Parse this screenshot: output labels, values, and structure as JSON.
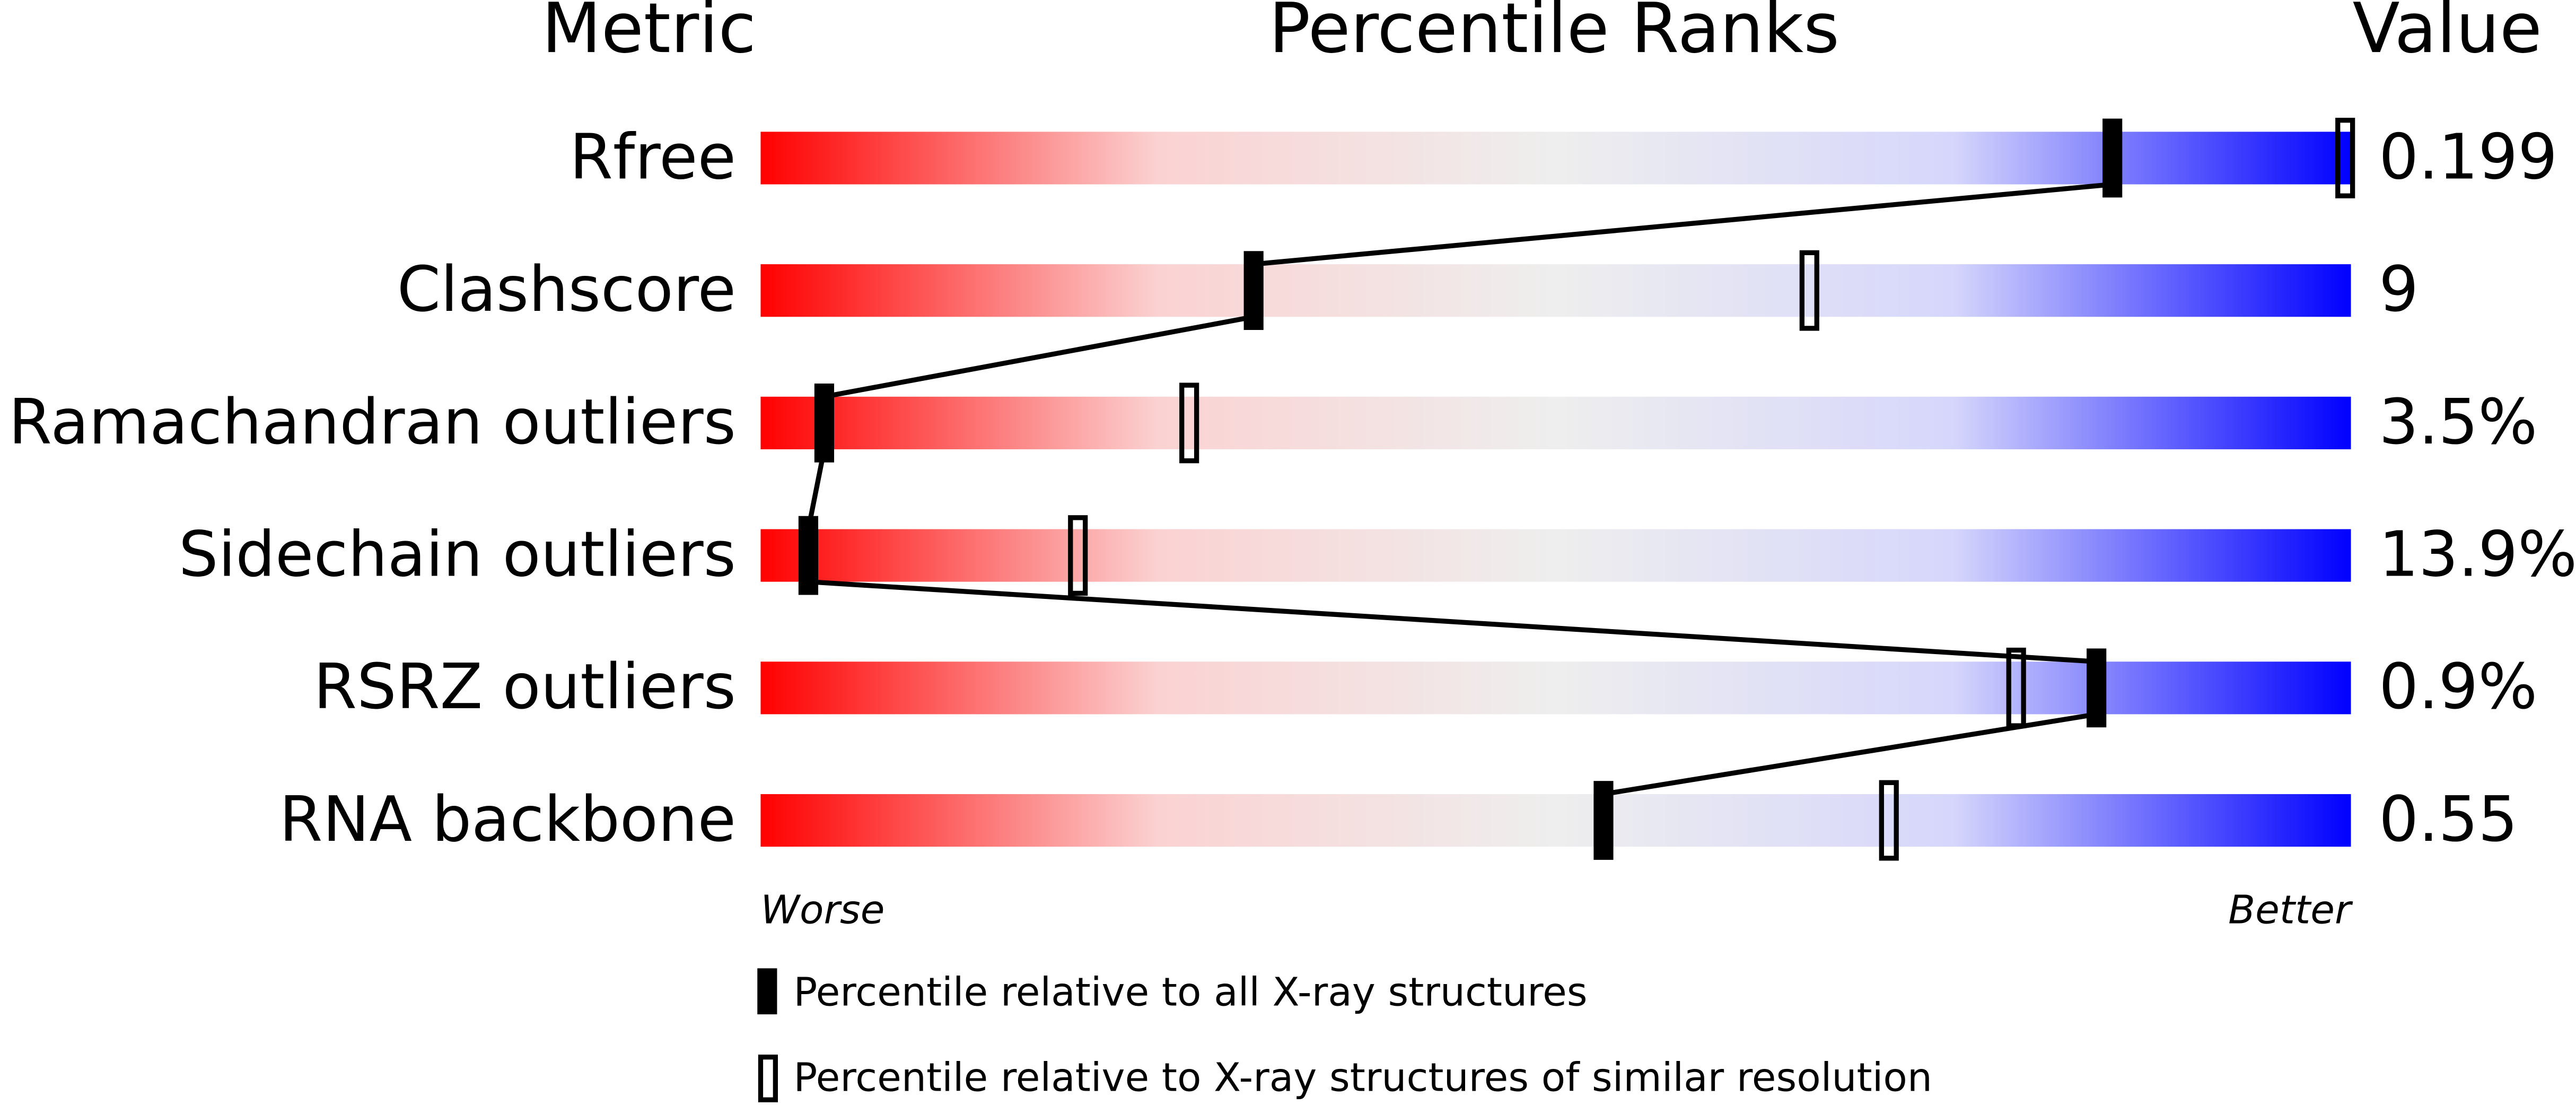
{
  "chart_data": {
    "type": "percentile-slider",
    "headers": {
      "metric": "Metric",
      "ranks": "Percentile Ranks",
      "value": "Value"
    },
    "categories": [
      "Rfree",
      "Clashscore",
      "Ramachandran outliers",
      "Sidechain outliers",
      "RSRZ outliers",
      "RNA backbone"
    ],
    "metric_values": [
      "0.199",
      "9",
      "3.5%",
      "13.9%",
      "0.9%",
      "0.55"
    ],
    "series": [
      {
        "name": "Percentile relative to all X-ray structures",
        "color": "#000000",
        "style": "filled",
        "values": [
          85,
          31,
          4,
          3,
          84,
          53
        ]
      },
      {
        "name": "Percentile relative to X-ray structures of similar resolution",
        "color": "#000000",
        "style": "open",
        "values": [
          100,
          66,
          27,
          20,
          79,
          71
        ]
      }
    ],
    "xlim": [
      0,
      100
    ],
    "axis_ends": {
      "low": "Worse",
      "high": "Better"
    }
  }
}
